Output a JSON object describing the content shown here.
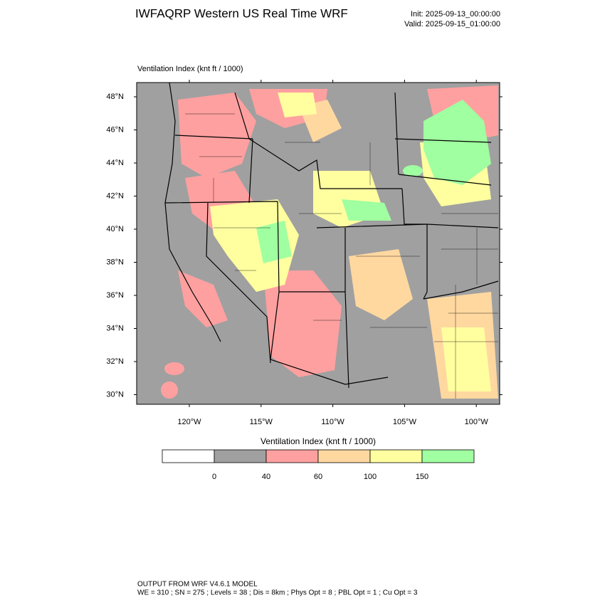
{
  "header": {
    "title": "IWFAQRP Western US Real Time WRF",
    "init": "Init: 2025-09-13_00:00:00",
    "valid": "Valid: 2025-09-15_01:00:00"
  },
  "map": {
    "label": "Ventilation Index   (knt ft / 1000)",
    "lat_labels": [
      "48°N",
      "46°N",
      "44°N",
      "42°N",
      "40°N",
      "38°N",
      "36°N",
      "34°N",
      "32°N",
      "30°N"
    ],
    "lon_labels": [
      "120°W",
      "115°W",
      "110°W",
      "105°W",
      "100°W"
    ]
  },
  "colorbar": {
    "title": "Ventilation Index   (knt ft / 1000)",
    "colors": [
      "#ffffff",
      "#a0a0a0",
      "#ffa0a0",
      "#ffd8a0",
      "#ffffa0",
      "#a0ffa0"
    ],
    "labels": [
      "0",
      "40",
      "60",
      "100",
      "150"
    ]
  },
  "footer": {
    "line1": "OUTPUT FROM WRF V4.6.1 MODEL",
    "line2": "WE = 310 ; SN = 275 ; Levels = 38 ; Dis = 8km ; Phys Opt = 8 ; PBL Opt = 1 ; Cu Opt = 3"
  }
}
